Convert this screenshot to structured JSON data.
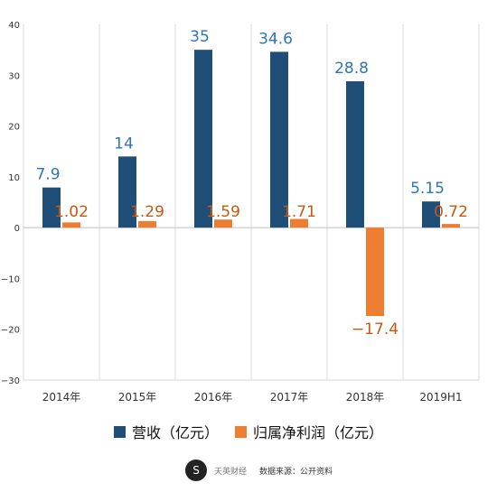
{
  "chart_data": {
    "type": "bar",
    "categories": [
      "2014年",
      "2015年",
      "2016年",
      "2017年",
      "2018年",
      "2019H1"
    ],
    "series": [
      {
        "name": "营收（亿元）",
        "color": "#1f4e79",
        "values": [
          7.9,
          14,
          35,
          34.6,
          28.8,
          5.15
        ],
        "labels": [
          "7.9",
          "14",
          "35",
          "34.6",
          "28.8",
          "5.15"
        ]
      },
      {
        "name": "归属净利润（亿元）",
        "color": "#ed7d31",
        "values": [
          1.02,
          1.29,
          1.59,
          1.71,
          -17.4,
          0.72
        ],
        "labels": [
          "1.02",
          "1.29",
          "1.59",
          "1.71",
          "−17.4",
          "0.72"
        ]
      }
    ],
    "ylim": [
      -30,
      40
    ],
    "yticks": [
      40,
      30,
      20,
      10,
      0,
      -10,
      -20,
      -30
    ],
    "ytick_labels": [
      "40",
      "30",
      "20",
      "10",
      "0",
      "−10",
      "−20",
      "−30"
    ],
    "grid": "vertical",
    "legend": "bottom-center",
    "title": "",
    "xlabel": "",
    "ylabel": ""
  },
  "legend": {
    "items": [
      {
        "label": "营收（亿元）",
        "color": "#1f4e79"
      },
      {
        "label": "归属净利润（亿元）",
        "color": "#ed7d31"
      }
    ]
  },
  "footer": {
    "logo_text": "S",
    "brand": "天英财经",
    "source": "数据来源：公开资料"
  },
  "colors": {
    "label_blue": "#2e75b6",
    "label_orange": "#c65911"
  }
}
